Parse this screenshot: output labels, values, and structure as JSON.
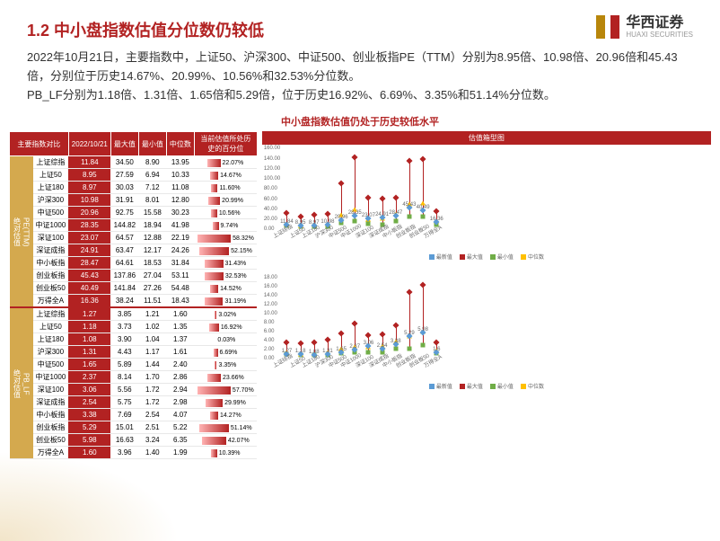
{
  "header": {
    "title": "1.2 中小盘指数估值分位数仍较低",
    "logo_main": "华西证券",
    "logo_sub": "HUAXI SECURITIES"
  },
  "desc": {
    "p1": "2022年10月21日，主要指数中，上证50、沪深300、中证500、创业板指PE（TTM）分别为8.95倍、10.98倍、20.96倍和45.43倍，分别位于历史14.67%、20.99%、10.56%和32.53%分位数。",
    "p2": "PB_LF分别为1.18倍、1.31倍、1.65倍和5.29倍，位于历史16.92%、6.69%、3.35%和51.14%分位数。"
  },
  "subtitle": "中小盘指数估值仍处于历史较低水平",
  "table": {
    "headers": [
      "主要指数对比",
      "2022/10/21",
      "最大值",
      "最小值",
      "中位数",
      "当前估值所处历史的百分位"
    ],
    "chart_header": "估值箱型图",
    "sections": [
      {
        "cat": "绝对估值\nPE(TTM)",
        "rows": [
          {
            "name": "上证综指",
            "cur": "11.84",
            "max": "34.50",
            "min": "8.90",
            "med": "13.95",
            "pct": 22.07
          },
          {
            "name": "上证50",
            "cur": "8.95",
            "max": "27.59",
            "min": "6.94",
            "med": "10.33",
            "pct": 14.67
          },
          {
            "name": "上证180",
            "cur": "8.97",
            "max": "30.03",
            "min": "7.12",
            "med": "11.08",
            "pct": 11.6
          },
          {
            "name": "沪深300",
            "cur": "10.98",
            "max": "31.91",
            "min": "8.01",
            "med": "12.80",
            "pct": 20.99
          },
          {
            "name": "中证500",
            "cur": "20.96",
            "max": "92.75",
            "min": "15.58",
            "med": "30.23",
            "pct": 10.56
          },
          {
            "name": "中证1000",
            "cur": "28.35",
            "max": "144.82",
            "min": "18.94",
            "med": "41.98",
            "pct": 9.74
          },
          {
            "name": "深证100",
            "cur": "23.07",
            "max": "64.57",
            "min": "12.88",
            "med": "22.19",
            "pct": 58.32
          },
          {
            "name": "深证成指",
            "cur": "24.91",
            "max": "63.47",
            "min": "12.17",
            "med": "24.26",
            "pct": 52.15
          },
          {
            "name": "中小板指",
            "cur": "28.47",
            "max": "64.61",
            "min": "18.53",
            "med": "31.84",
            "pct": 31.43
          },
          {
            "name": "创业板指",
            "cur": "45.43",
            "max": "137.86",
            "min": "27.04",
            "med": "53.11",
            "pct": 32.53
          },
          {
            "name": "创业板50",
            "cur": "40.49",
            "max": "141.84",
            "min": "27.26",
            "med": "54.48",
            "pct": 14.52
          },
          {
            "name": "万得全A",
            "cur": "16.36",
            "max": "38.24",
            "min": "11.51",
            "med": "18.43",
            "pct": 31.19
          }
        ]
      },
      {
        "cat": "绝对估值\nPB_LF",
        "rows": [
          {
            "name": "上证综指",
            "cur": "1.27",
            "max": "3.85",
            "min": "1.21",
            "med": "1.60",
            "pct": 3.02
          },
          {
            "name": "上证50",
            "cur": "1.18",
            "max": "3.73",
            "min": "1.02",
            "med": "1.35",
            "pct": 16.92
          },
          {
            "name": "上证180",
            "cur": "1.08",
            "max": "3.90",
            "min": "1.04",
            "med": "1.37",
            "pct": 0.03
          },
          {
            "name": "沪深300",
            "cur": "1.31",
            "max": "4.43",
            "min": "1.17",
            "med": "1.61",
            "pct": 6.69
          },
          {
            "name": "中证500",
            "cur": "1.65",
            "max": "5.89",
            "min": "1.44",
            "med": "2.40",
            "pct": 3.35
          },
          {
            "name": "中证1000",
            "cur": "2.37",
            "max": "8.14",
            "min": "1.70",
            "med": "2.86",
            "pct": 23.66
          },
          {
            "name": "深证100",
            "cur": "3.06",
            "max": "5.56",
            "min": "1.72",
            "med": "2.94",
            "pct": 57.7
          },
          {
            "name": "深证成指",
            "cur": "2.54",
            "max": "5.75",
            "min": "1.72",
            "med": "2.98",
            "pct": 29.99
          },
          {
            "name": "中小板指",
            "cur": "3.38",
            "max": "7.69",
            "min": "2.54",
            "med": "4.07",
            "pct": 14.27
          },
          {
            "name": "创业板指",
            "cur": "5.29",
            "max": "15.01",
            "min": "2.51",
            "med": "5.22",
            "pct": 51.14
          },
          {
            "name": "创业板50",
            "cur": "5.98",
            "max": "16.63",
            "min": "3.24",
            "med": "6.35",
            "pct": 42.07
          },
          {
            "name": "万得全A",
            "cur": "1.60",
            "max": "3.96",
            "min": "1.40",
            "med": "1.99",
            "pct": 10.39
          }
        ]
      }
    ]
  },
  "chart": {
    "legend": [
      "最新值",
      "最大值",
      "最小值",
      "中位数"
    ],
    "legend_colors": [
      "#5b9bd5",
      "#b22222",
      "#70ad47",
      "#ffc000"
    ],
    "pe": {
      "ymax": 160,
      "yticks": [
        0,
        20,
        40,
        60,
        80,
        100,
        120,
        140,
        160
      ],
      "labels": [
        "上证综指",
        "上证50",
        "上证180",
        "沪深300",
        "中证500",
        "中证1000",
        "深证100",
        "深证成指",
        "中小板指",
        "创业板指",
        "创业板50",
        "万得全A"
      ],
      "cur": [
        11.84,
        8.95,
        8.97,
        10.98,
        20.96,
        28.35,
        23.07,
        24.91,
        28.47,
        45.43,
        40.49,
        16.36
      ]
    },
    "pb": {
      "ymax": 18,
      "yticks": [
        0,
        2,
        4,
        6,
        8,
        10,
        12,
        14,
        16,
        18
      ],
      "labels": [
        "上证综指",
        "上证50",
        "上证180",
        "沪深300",
        "中证500",
        "中证1000",
        "深证100",
        "深证成指",
        "中小板指",
        "创业板指",
        "创业板50",
        "万得全A"
      ],
      "cur": [
        1.27,
        1.18,
        1.08,
        1.31,
        1.65,
        2.37,
        3.06,
        2.54,
        3.38,
        5.29,
        5.98,
        1.6
      ]
    }
  }
}
